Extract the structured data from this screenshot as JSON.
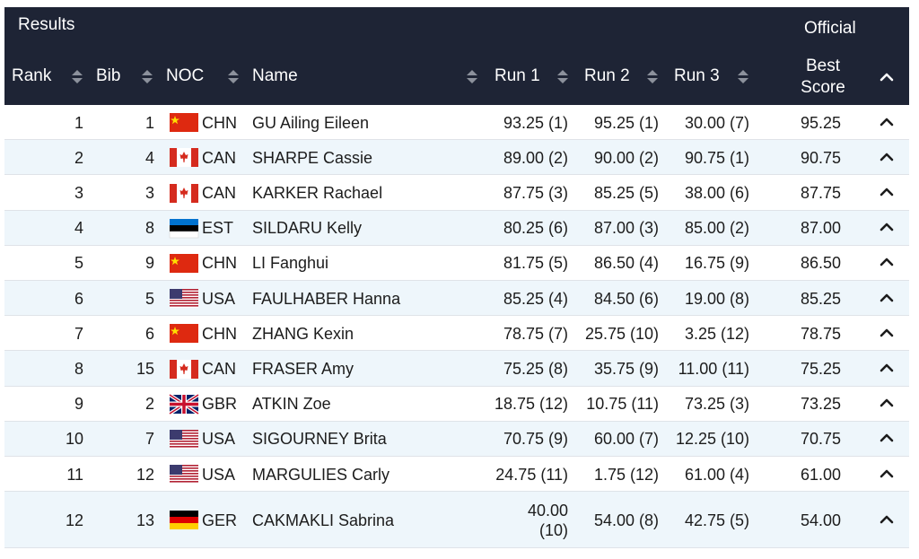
{
  "header": {
    "title": "Results",
    "status": "Official"
  },
  "table": {
    "columns": [
      "Rank",
      "Bib",
      "NOC",
      "Name",
      "Run 1",
      "Run 2",
      "Run 3",
      "Best Score"
    ],
    "rows": [
      [
        "1",
        "1",
        "CHN",
        "GU Ailing Eileen",
        "93.25 (1)",
        "95.25 (1)",
        "30.00 (7)",
        "95.25"
      ],
      [
        "2",
        "4",
        "CAN",
        "SHARPE Cassie",
        "89.00 (2)",
        "90.00 (2)",
        "90.75 (1)",
        "90.75"
      ],
      [
        "3",
        "3",
        "CAN",
        "KARKER Rachael",
        "87.75 (3)",
        "85.25 (5)",
        "38.00 (6)",
        "87.75"
      ],
      [
        "4",
        "8",
        "EST",
        "SILDARU Kelly",
        "80.25 (6)",
        "87.00 (3)",
        "85.00 (2)",
        "87.00"
      ],
      [
        "5",
        "9",
        "CHN",
        "LI Fanghui",
        "81.75 (5)",
        "86.50 (4)",
        "16.75 (9)",
        "86.50"
      ],
      [
        "6",
        "5",
        "USA",
        "FAULHABER Hanna",
        "85.25 (4)",
        "84.50 (6)",
        "19.00 (8)",
        "85.25"
      ],
      [
        "7",
        "6",
        "CHN",
        "ZHANG Kexin",
        "78.75 (7)",
        "25.75 (10)",
        "3.25 (12)",
        "78.75"
      ],
      [
        "8",
        "15",
        "CAN",
        "FRASER Amy",
        "75.25 (8)",
        "35.75 (9)",
        "11.00 (11)",
        "75.25"
      ],
      [
        "9",
        "2",
        "GBR",
        "ATKIN Zoe",
        "18.75 (12)",
        "10.75 (11)",
        "73.25 (3)",
        "73.25"
      ],
      [
        "10",
        "7",
        "USA",
        "SIGOURNEY Brita",
        "70.75 (9)",
        "60.00 (7)",
        "12.25 (10)",
        "70.75"
      ],
      [
        "11",
        "12",
        "USA",
        "MARGULIES Carly",
        "24.75 (11)",
        "1.75 (12)",
        "61.00 (4)",
        "61.00"
      ],
      [
        "12",
        "13",
        "GER",
        "CAKMAKLI Sabrina",
        "40.00 (10)",
        "54.00 (8)",
        "42.75 (5)",
        "54.00"
      ]
    ]
  }
}
